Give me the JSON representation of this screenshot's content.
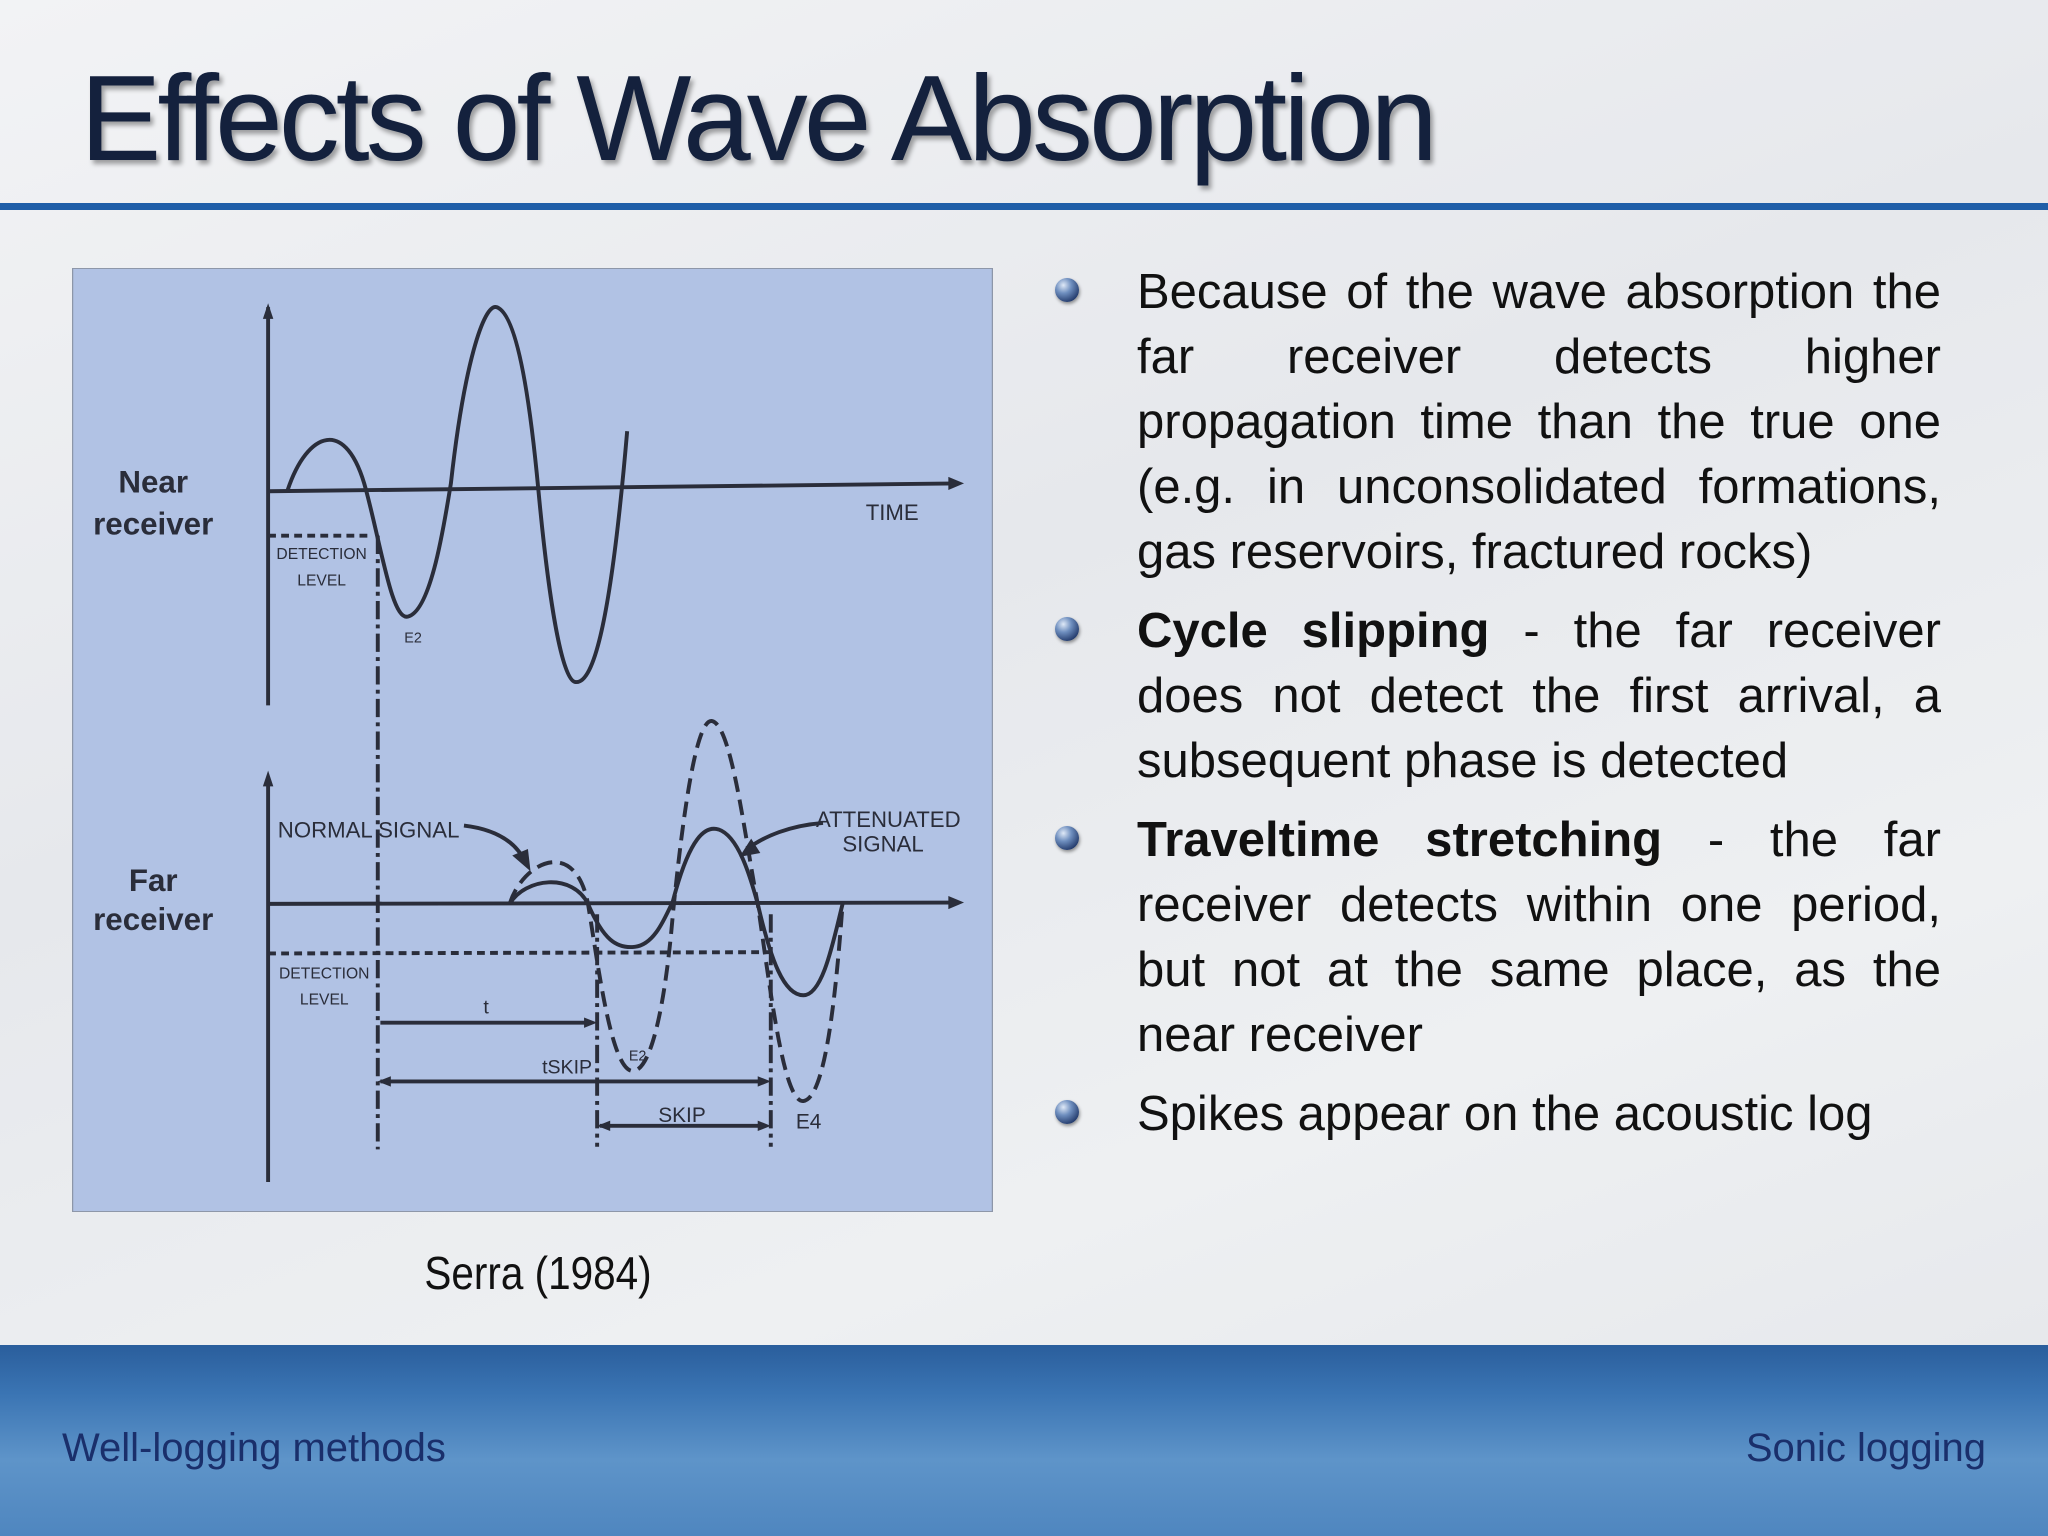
{
  "title": "Effects of Wave Absorption",
  "figure": {
    "near_receiver": [
      "Near",
      "receiver"
    ],
    "far_receiver": [
      "Far",
      "receiver"
    ],
    "time": "TIME",
    "detection_level_near": [
      "DETECTION",
      "LEVEL"
    ],
    "detection_level_far": [
      "DETECTION",
      "LEVEL"
    ],
    "e2_near": "E2",
    "normal_signal": "NORMAL  SIGNAL",
    "attenuated_signal": [
      "ATTENUATED",
      "SIGNAL"
    ],
    "t": "t",
    "t_skip": "tSKIP",
    "skip": "SKIP",
    "e2_far": "E2",
    "e4": "E4",
    "caption": "Serra (1984)"
  },
  "bullets": [
    {
      "text": "Because of the wave absorption the far receiver detects higher propagation time than the true one (e.g. in unconsolidated formations, gas reservoirs, fractured rocks)"
    },
    {
      "bold": "Cycle slipping",
      "text": " - the far receiver does not detect the first arrival, a subsequent phase is detected"
    },
    {
      "bold": "Traveltime stretching",
      "text": " - the far receiver detects within one period, but not at the same place, as the near receiver"
    },
    {
      "text": "Spikes appear on the acoustic log"
    }
  ],
  "footer": {
    "left": "Well-logging methods",
    "right": "Sonic logging"
  }
}
